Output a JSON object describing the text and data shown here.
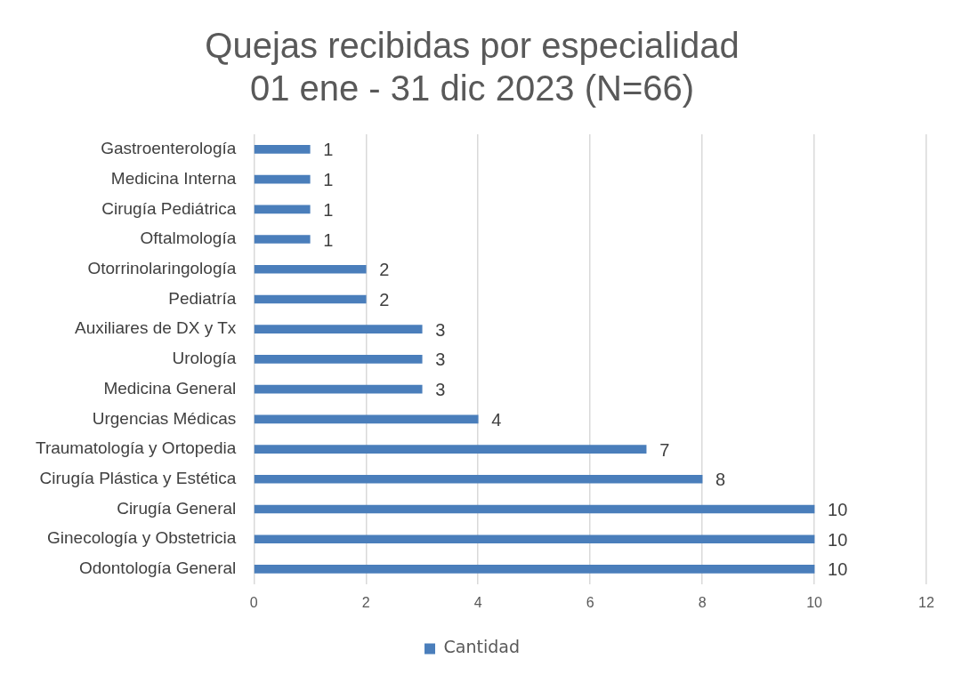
{
  "chart_data": {
    "type": "bar",
    "orientation": "horizontal",
    "title": "Quejas recibidas por especialidad\n01 ene - 31 dic 2023 (N=66)",
    "categories": [
      "Gastroenterología",
      "Medicina Interna",
      "Cirugía Pediátrica",
      "Oftalmología",
      "Otorrinolaringología",
      "Pediatría",
      "Auxiliares de DX y Tx",
      "Urología",
      "Medicina General",
      "Urgencias Médicas",
      "Traumatología y Ortopedia",
      "Cirugía Plástica y Estética",
      "Cirugía General",
      "Ginecología y Obstetricia",
      "Odontología General"
    ],
    "series": [
      {
        "name": "Cantidad",
        "color": "#4a7ebb",
        "values": [
          1,
          1,
          1,
          1,
          2,
          2,
          3,
          3,
          3,
          4,
          7,
          8,
          10,
          10,
          10
        ]
      }
    ],
    "xlim": [
      0,
      12
    ],
    "xticks": [
      0,
      2,
      4,
      6,
      8,
      10,
      12
    ],
    "grid": "x",
    "legend": "bottom",
    "data_labels": true
  }
}
